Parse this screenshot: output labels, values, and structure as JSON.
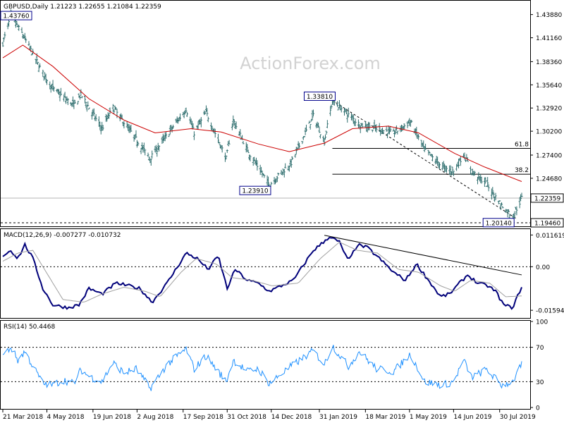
{
  "chart_data": [
    {
      "type": "candlestick",
      "title": "GBPUSD,Daily  1.21223  1.22655  1.21084  1.22359",
      "watermark": "ActionForex.com",
      "y_ticks": [
        "1.43880",
        "1.41160",
        "1.38360",
        "1.35640",
        "1.32920",
        "1.30200",
        "1.27400",
        "1.24680",
        "1.22359",
        "1.19460"
      ],
      "y_tick_values": [
        1.4388,
        1.4116,
        1.3836,
        1.3564,
        1.3292,
        1.302,
        1.274,
        1.2468,
        1.22359,
        1.1946
      ],
      "ylim": [
        1.1946,
        1.4534
      ],
      "current_price": "1.22359",
      "current_price_value": 1.22359,
      "support_level": "1.19460",
      "support_value": 1.1946,
      "moving_average_color": "#cc0000",
      "bar_color": "#2e6e6e",
      "annotations": [
        {
          "label": "1.43760",
          "value": 1.4376,
          "date": "2018-03-29"
        },
        {
          "label": "1.33810",
          "value": 1.3381,
          "date": "2019-02-13"
        },
        {
          "label": "1.23910",
          "value": 1.2391,
          "date": "2018-12-12"
        },
        {
          "label": "1.20140",
          "value": 1.2014,
          "date": "2019-08-12"
        }
      ],
      "fibonacci_levels": [
        {
          "label": "61.8",
          "value": 1.2818
        },
        {
          "label": "38.2",
          "value": 1.2516
        }
      ],
      "key_points": [
        {
          "date": "2018-03-21",
          "value": 1.405
        },
        {
          "date": "2018-03-29",
          "value": 1.4376
        },
        {
          "date": "2018-04-10",
          "value": 1.415
        },
        {
          "date": "2018-04-30",
          "value": 1.37
        },
        {
          "date": "2018-05-10",
          "value": 1.352
        },
        {
          "date": "2018-05-31",
          "value": 1.332
        },
        {
          "date": "2018-06-07",
          "value": 1.345
        },
        {
          "date": "2018-06-28",
          "value": 1.305
        },
        {
          "date": "2018-07-09",
          "value": 1.33
        },
        {
          "date": "2018-08-15",
          "value": 1.27
        },
        {
          "date": "2018-09-20",
          "value": 1.328
        },
        {
          "date": "2018-09-28",
          "value": 1.3
        },
        {
          "date": "2018-10-10",
          "value": 1.324
        },
        {
          "date": "2018-10-30",
          "value": 1.27
        },
        {
          "date": "2018-11-06",
          "value": 1.315
        },
        {
          "date": "2018-11-20",
          "value": 1.28
        },
        {
          "date": "2018-12-12",
          "value": 1.2391
        },
        {
          "date": "2019-01-03",
          "value": 1.265
        },
        {
          "date": "2019-01-25",
          "value": 1.32
        },
        {
          "date": "2019-02-05",
          "value": 1.29
        },
        {
          "date": "2019-02-13",
          "value": 1.3381
        },
        {
          "date": "2019-03-12",
          "value": 1.31
        },
        {
          "date": "2019-03-29",
          "value": 1.305
        },
        {
          "date": "2019-04-15",
          "value": 1.3
        },
        {
          "date": "2019-05-02",
          "value": 1.313
        },
        {
          "date": "2019-05-16",
          "value": 1.28
        },
        {
          "date": "2019-06-03",
          "value": 1.26
        },
        {
          "date": "2019-06-14",
          "value": 1.255
        },
        {
          "date": "2019-06-24",
          "value": 1.275
        },
        {
          "date": "2019-07-02",
          "value": 1.255
        },
        {
          "date": "2019-07-17",
          "value": 1.24
        },
        {
          "date": "2019-08-01",
          "value": 1.215
        },
        {
          "date": "2019-08-12",
          "value": 1.2014
        },
        {
          "date": "2019-08-21",
          "value": 1.2236
        }
      ],
      "ma_points": [
        {
          "date": "2018-03-21",
          "value": 1.388
        },
        {
          "date": "2018-04-10",
          "value": 1.403
        },
        {
          "date": "2018-05-10",
          "value": 1.378
        },
        {
          "date": "2018-06-15",
          "value": 1.34
        },
        {
          "date": "2018-07-20",
          "value": 1.315
        },
        {
          "date": "2018-08-20",
          "value": 1.3
        },
        {
          "date": "2018-09-25",
          "value": 1.305
        },
        {
          "date": "2018-10-25",
          "value": 1.301
        },
        {
          "date": "2018-12-01",
          "value": 1.287
        },
        {
          "date": "2019-01-01",
          "value": 1.278
        },
        {
          "date": "2019-02-05",
          "value": 1.288
        },
        {
          "date": "2019-03-05",
          "value": 1.305
        },
        {
          "date": "2019-04-10",
          "value": 1.308
        },
        {
          "date": "2019-05-10",
          "value": 1.3
        },
        {
          "date": "2019-06-15",
          "value": 1.276
        },
        {
          "date": "2019-07-15",
          "value": 1.26
        },
        {
          "date": "2019-08-21",
          "value": 1.243
        }
      ],
      "trendline": [
        {
          "date": "2019-02-13",
          "value": 1.3381
        },
        {
          "date": "2019-08-15",
          "value": 1.2
        }
      ],
      "fib_start_date": "2019-02-13"
    },
    {
      "type": "line",
      "title": "MACD(12,26,9) -0.007277 -0.010732",
      "y_ticks": [
        "0.011619",
        "0.00",
        "-0.015949"
      ],
      "y_tick_values": [
        0.011619,
        0.0,
        -0.015949
      ],
      "ylim": [
        -0.0185,
        0.0135
      ],
      "series": [
        {
          "name": "MACD",
          "color": "#00007a",
          "points": [
            {
              "date": "2018-03-21",
              "value": 0.004
            },
            {
              "date": "2018-03-29",
              "value": 0.006
            },
            {
              "date": "2018-04-05",
              "value": 0.003
            },
            {
              "date": "2018-04-12",
              "value": 0.008
            },
            {
              "date": "2018-04-20",
              "value": 0.003
            },
            {
              "date": "2018-04-30",
              "value": -0.008
            },
            {
              "date": "2018-05-10",
              "value": -0.014
            },
            {
              "date": "2018-05-25",
              "value": -0.015
            },
            {
              "date": "2018-06-05",
              "value": -0.014
            },
            {
              "date": "2018-06-15",
              "value": -0.008
            },
            {
              "date": "2018-06-28",
              "value": -0.01
            },
            {
              "date": "2018-07-12",
              "value": -0.006
            },
            {
              "date": "2018-07-25",
              "value": -0.007
            },
            {
              "date": "2018-08-05",
              "value": -0.008
            },
            {
              "date": "2018-08-17",
              "value": -0.013
            },
            {
              "date": "2018-09-01",
              "value": -0.006
            },
            {
              "date": "2018-09-20",
              "value": 0.005
            },
            {
              "date": "2018-10-01",
              "value": 0.003
            },
            {
              "date": "2018-10-12",
              "value": -0.001
            },
            {
              "date": "2018-10-22",
              "value": 0.004
            },
            {
              "date": "2018-10-31",
              "value": -0.008
            },
            {
              "date": "2018-11-08",
              "value": -0.001
            },
            {
              "date": "2018-11-20",
              "value": -0.005
            },
            {
              "date": "2018-12-01",
              "value": -0.006
            },
            {
              "date": "2018-12-12",
              "value": -0.009
            },
            {
              "date": "2019-01-05",
              "value": -0.005
            },
            {
              "date": "2019-01-25",
              "value": 0.006
            },
            {
              "date": "2019-02-01",
              "value": 0.008
            },
            {
              "date": "2019-02-10",
              "value": 0.011
            },
            {
              "date": "2019-02-20",
              "value": 0.009
            },
            {
              "date": "2019-03-01",
              "value": 0.002
            },
            {
              "date": "2019-03-10",
              "value": 0.008
            },
            {
              "date": "2019-03-20",
              "value": 0.007
            },
            {
              "date": "2019-04-01",
              "value": 0.003
            },
            {
              "date": "2019-04-15",
              "value": -0.002
            },
            {
              "date": "2019-04-27",
              "value": -0.005
            },
            {
              "date": "2019-05-08",
              "value": 0.001
            },
            {
              "date": "2019-05-20",
              "value": -0.005
            },
            {
              "date": "2019-06-01",
              "value": -0.011
            },
            {
              "date": "2019-06-10",
              "value": -0.01
            },
            {
              "date": "2019-06-20",
              "value": -0.006
            },
            {
              "date": "2019-06-28",
              "value": -0.003
            },
            {
              "date": "2019-07-08",
              "value": -0.006
            },
            {
              "date": "2019-07-18",
              "value": -0.007
            },
            {
              "date": "2019-07-26",
              "value": -0.009
            },
            {
              "date": "2019-08-03",
              "value": -0.014
            },
            {
              "date": "2019-08-12",
              "value": -0.015
            },
            {
              "date": "2019-08-21",
              "value": -0.0073
            }
          ]
        },
        {
          "name": "Signal",
          "color": "#a0a0a0",
          "points": [
            {
              "date": "2018-03-21",
              "value": 0.002
            },
            {
              "date": "2018-04-05",
              "value": 0.005
            },
            {
              "date": "2018-04-20",
              "value": 0.006
            },
            {
              "date": "2018-05-05",
              "value": -0.003
            },
            {
              "date": "2018-05-20",
              "value": -0.012
            },
            {
              "date": "2018-06-10",
              "value": -0.013
            },
            {
              "date": "2018-06-28",
              "value": -0.01
            },
            {
              "date": "2018-07-20",
              "value": -0.0075
            },
            {
              "date": "2018-08-10",
              "value": -0.009
            },
            {
              "date": "2018-08-25",
              "value": -0.011
            },
            {
              "date": "2018-09-15",
              "value": -0.002
            },
            {
              "date": "2018-09-30",
              "value": 0.003
            },
            {
              "date": "2018-10-20",
              "value": 0.001
            },
            {
              "date": "2018-11-05",
              "value": -0.004
            },
            {
              "date": "2018-11-25",
              "value": -0.005
            },
            {
              "date": "2018-12-15",
              "value": -0.007
            },
            {
              "date": "2019-01-10",
              "value": -0.006
            },
            {
              "date": "2019-02-01",
              "value": 0.003
            },
            {
              "date": "2019-02-20",
              "value": 0.009
            },
            {
              "date": "2019-03-10",
              "value": 0.006
            },
            {
              "date": "2019-03-30",
              "value": 0.005
            },
            {
              "date": "2019-04-20",
              "value": -0.001
            },
            {
              "date": "2019-05-10",
              "value": -0.002
            },
            {
              "date": "2019-06-01",
              "value": -0.007
            },
            {
              "date": "2019-06-15",
              "value": -0.009
            },
            {
              "date": "2019-07-01",
              "value": -0.005
            },
            {
              "date": "2019-07-20",
              "value": -0.006
            },
            {
              "date": "2019-08-05",
              "value": -0.011
            },
            {
              "date": "2019-08-21",
              "value": -0.0107
            }
          ]
        }
      ],
      "trendline": [
        {
          "date": "2019-02-05",
          "value": 0.0115
        },
        {
          "date": "2019-08-21",
          "value": -0.003
        }
      ]
    },
    {
      "type": "line",
      "title": "RSI(14) 50.4468",
      "y_ticks": [
        "100",
        "70",
        "30",
        "0"
      ],
      "y_tick_values": [
        100,
        70,
        30,
        0
      ],
      "ylim": [
        0,
        100
      ],
      "series": [
        {
          "name": "RSI(14)",
          "color": "#1e90ff",
          "points": [
            {
              "date": "2018-03-21",
              "value": 60
            },
            {
              "date": "2018-03-29",
              "value": 70
            },
            {
              "date": "2018-04-05",
              "value": 55
            },
            {
              "date": "2018-04-12",
              "value": 65
            },
            {
              "date": "2018-04-20",
              "value": 48
            },
            {
              "date": "2018-04-30",
              "value": 28
            },
            {
              "date": "2018-05-10",
              "value": 26
            },
            {
              "date": "2018-05-20",
              "value": 32
            },
            {
              "date": "2018-05-31",
              "value": 28
            },
            {
              "date": "2018-06-07",
              "value": 44
            },
            {
              "date": "2018-06-15",
              "value": 36
            },
            {
              "date": "2018-06-28",
              "value": 30
            },
            {
              "date": "2018-07-09",
              "value": 52
            },
            {
              "date": "2018-07-20",
              "value": 40
            },
            {
              "date": "2018-08-01",
              "value": 45
            },
            {
              "date": "2018-08-15",
              "value": 22
            },
            {
              "date": "2018-09-01",
              "value": 50
            },
            {
              "date": "2018-09-20",
              "value": 68
            },
            {
              "date": "2018-09-28",
              "value": 45
            },
            {
              "date": "2018-10-10",
              "value": 60
            },
            {
              "date": "2018-10-30",
              "value": 30
            },
            {
              "date": "2018-11-06",
              "value": 55
            },
            {
              "date": "2018-11-20",
              "value": 42
            },
            {
              "date": "2018-12-01",
              "value": 45
            },
            {
              "date": "2018-12-12",
              "value": 28
            },
            {
              "date": "2019-01-03",
              "value": 48
            },
            {
              "date": "2019-01-25",
              "value": 66
            },
            {
              "date": "2019-02-05",
              "value": 50
            },
            {
              "date": "2019-02-13",
              "value": 72
            },
            {
              "date": "2019-03-01",
              "value": 48
            },
            {
              "date": "2019-03-12",
              "value": 65
            },
            {
              "date": "2019-03-29",
              "value": 45
            },
            {
              "date": "2019-04-15",
              "value": 42
            },
            {
              "date": "2019-05-02",
              "value": 62
            },
            {
              "date": "2019-05-16",
              "value": 30
            },
            {
              "date": "2019-06-03",
              "value": 26
            },
            {
              "date": "2019-06-14",
              "value": 30
            },
            {
              "date": "2019-06-24",
              "value": 55
            },
            {
              "date": "2019-07-02",
              "value": 35
            },
            {
              "date": "2019-07-17",
              "value": 44
            },
            {
              "date": "2019-08-01",
              "value": 26
            },
            {
              "date": "2019-08-12",
              "value": 30
            },
            {
              "date": "2019-08-21",
              "value": 50
            }
          ]
        }
      ]
    }
  ],
  "x_axis": {
    "start_date": "2018-03-21",
    "end_date": "2019-08-21",
    "ticks": [
      {
        "label": "21 Mar 2018",
        "date": "2018-03-21"
      },
      {
        "label": "4 May 2018",
        "date": "2018-05-04"
      },
      {
        "label": "19 Jun 2018",
        "date": "2018-06-19"
      },
      {
        "label": "2 Aug 2018",
        "date": "2018-08-02"
      },
      {
        "label": "17 Sep 2018",
        "date": "2018-09-17"
      },
      {
        "label": "31 Oct 2018",
        "date": "2018-10-31"
      },
      {
        "label": "14 Dec 2018",
        "date": "2018-12-14"
      },
      {
        "label": "31 Jan 2019",
        "date": "2019-01-31"
      },
      {
        "label": "18 Mar 2019",
        "date": "2019-03-18"
      },
      {
        "label": "1 May 2019",
        "date": "2019-05-01"
      },
      {
        "label": "14 Jun 2019",
        "date": "2019-06-14"
      },
      {
        "label": "30 Jul 2019",
        "date": "2019-07-30"
      }
    ]
  }
}
